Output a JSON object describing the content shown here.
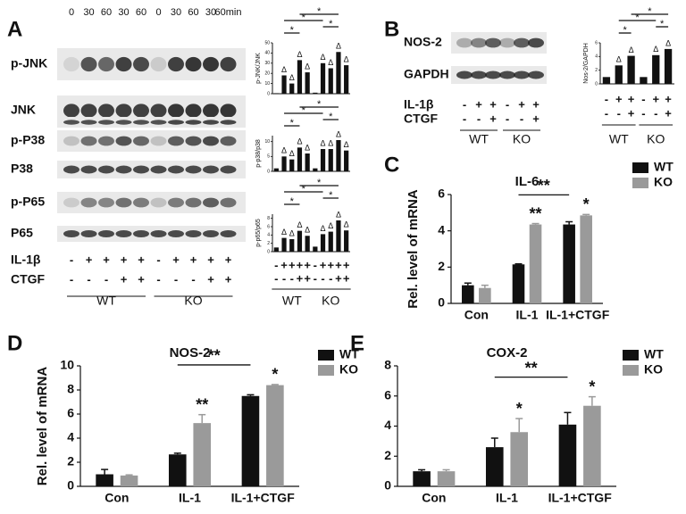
{
  "panel_labels": [
    "A",
    "B",
    "C",
    "D",
    "E"
  ],
  "groups": [
    "WT",
    "KO"
  ],
  "blot_a": {
    "times": [
      "0",
      "30",
      "60",
      "30",
      "60",
      "0",
      "30",
      "60",
      "30",
      "60min"
    ],
    "rows": [
      "p-JNK",
      "JNK",
      "p-P38",
      "P38",
      "p-P65",
      "P65"
    ],
    "treatments": [
      {
        "name": "IL-1β",
        "signs": [
          "-",
          "+",
          "+",
          "+",
          "+",
          "-",
          "+",
          "+",
          "+",
          "+"
        ]
      },
      {
        "name": "CTGF",
        "signs": [
          "-",
          "-",
          "-",
          "+",
          "+",
          "-",
          "-",
          "-",
          "+",
          "+"
        ]
      }
    ]
  },
  "blot_b": {
    "rows": [
      "NOS-2",
      "GAPDH"
    ],
    "treatments": [
      {
        "name": "IL-1β",
        "signs": [
          "-",
          "+",
          "+",
          "-",
          "+",
          "+"
        ]
      },
      {
        "name": "CTGF",
        "signs": [
          "-",
          "-",
          "+",
          "-",
          "-",
          "+"
        ]
      }
    ]
  },
  "chart_data": [
    {
      "type": "small-bar",
      "ylabel": "p-JNK/JNK",
      "color": "#111111",
      "values": [
        0.5,
        18,
        10,
        33,
        21,
        1,
        30,
        25,
        41,
        28
      ],
      "ylim": [
        0,
        50
      ],
      "yticks": [
        0,
        10,
        20,
        30,
        40,
        50
      ],
      "bar_marks": [
        null,
        "Δ",
        "Δ",
        "Δ",
        "Δ",
        null,
        "Δ",
        "Δ",
        "Δ",
        "Δ"
      ],
      "brackets": [
        {
          "label": "*",
          "span": [
            3,
            8
          ]
        },
        {
          "label": "*",
          "span": [
            1,
            6
          ]
        },
        {
          "label": "*",
          "span": [
            6,
            8
          ]
        },
        {
          "label": "*",
          "span": [
            1,
            3
          ]
        }
      ]
    },
    {
      "type": "small-bar",
      "ylabel": "p-p38/p38",
      "color": "#111111",
      "values": [
        1,
        5,
        4,
        8,
        6,
        1,
        7.5,
        7.5,
        10.5,
        7
      ],
      "ylim": [
        0,
        12
      ],
      "yticks": [
        0,
        5,
        10
      ],
      "bar_marks": [
        null,
        "Δ",
        "Δ",
        "Δ",
        "Δ",
        null,
        "Δ",
        "Δ",
        "Δ",
        "Δ"
      ],
      "brackets": [
        {
          "label": "*",
          "span": [
            3,
            8
          ]
        },
        {
          "label": "*",
          "span": [
            1,
            6
          ]
        },
        {
          "label": "*",
          "span": [
            6,
            8
          ]
        },
        {
          "label": "*",
          "span": [
            1,
            3
          ]
        }
      ]
    },
    {
      "type": "small-bar",
      "ylabel": "p-p65/p65",
      "color": "#111111",
      "values": [
        1,
        3.3,
        3,
        5,
        3.8,
        1.2,
        4.2,
        4.8,
        7.5,
        5.1
      ],
      "ylim": [
        0,
        9
      ],
      "yticks": [
        0,
        2,
        4,
        6,
        8
      ],
      "bar_marks": [
        null,
        "Δ",
        "Δ",
        "Δ",
        "Δ",
        null,
        "Δ",
        "Δ",
        "Δ",
        "Δ"
      ],
      "brackets": [
        {
          "label": "*",
          "span": [
            3,
            8
          ]
        },
        {
          "label": "*",
          "span": [
            1,
            6
          ]
        },
        {
          "label": "*",
          "span": [
            6,
            8
          ]
        },
        {
          "label": "*",
          "span": [
            1,
            3
          ]
        }
      ]
    },
    {
      "type": "small-bar",
      "ylabel": "Nos-2/GAPDH",
      "color": "#111111",
      "values": [
        1,
        2.7,
        4.1,
        1,
        4.2,
        5.1
      ],
      "ylim": [
        0,
        6
      ],
      "yticks": [
        0,
        2,
        4,
        6
      ],
      "bar_marks": [
        null,
        "Δ",
        "Δ",
        null,
        "Δ",
        "Δ"
      ],
      "brackets": [
        {
          "label": "*",
          "span": [
            2,
            5
          ]
        },
        {
          "label": "*",
          "span": [
            1,
            4
          ]
        },
        {
          "label": "*",
          "span": [
            4,
            5
          ]
        },
        {
          "label": "*",
          "span": [
            1,
            2
          ]
        }
      ]
    },
    {
      "type": "bar",
      "title": "IL-6",
      "ylabel": "Rel. level of mRNA",
      "categories": [
        "Con",
        "IL-1",
        "IL-1+CTGF"
      ],
      "legend": "right",
      "series": [
        {
          "name": "WT",
          "color": "#111111",
          "values": [
            1.0,
            2.15,
            4.35
          ],
          "errors": [
            0.12,
            0.03,
            0.15
          ]
        },
        {
          "name": "KO",
          "color": "#9a9a9a",
          "values": [
            0.85,
            4.35,
            4.85
          ],
          "errors": [
            0.15,
            0.05,
            0.05
          ]
        }
      ],
      "ylim": [
        0,
        6
      ],
      "yticks": [
        0,
        2,
        4,
        6
      ],
      "annotations": [
        {
          "text": "**",
          "series": 1,
          "index": 1
        },
        {
          "text": "*",
          "series": 1,
          "index": 2
        }
      ],
      "bracket": {
        "text": "**",
        "span": [
          1,
          2
        ]
      }
    },
    {
      "type": "bar",
      "title": "NOS-2",
      "ylabel": "Rel. level of mRNA",
      "categories": [
        "Con",
        "IL-1",
        "IL-1+CTGF"
      ],
      "legend": "right",
      "series": [
        {
          "name": "WT",
          "color": "#111111",
          "values": [
            1.0,
            2.65,
            7.5
          ],
          "errors": [
            0.4,
            0.1,
            0.1
          ]
        },
        {
          "name": "KO",
          "color": "#9a9a9a",
          "values": [
            0.9,
            5.25,
            8.4
          ],
          "errors": [
            0.05,
            0.7,
            0.05
          ]
        }
      ],
      "ylim": [
        0,
        10
      ],
      "yticks": [
        0,
        2,
        4,
        6,
        8,
        10
      ],
      "annotations": [
        {
          "text": "**",
          "series": 1,
          "index": 1
        },
        {
          "text": "*",
          "series": 1,
          "index": 2
        }
      ],
      "bracket": {
        "text": "**",
        "span": [
          1,
          2
        ]
      }
    },
    {
      "type": "bar",
      "title": "COX-2",
      "categories": [
        "Con",
        "IL-1",
        "IL-1+CTGF"
      ],
      "legend": "right",
      "series": [
        {
          "name": "WT",
          "color": "#111111",
          "values": [
            1.0,
            2.6,
            4.1
          ],
          "errors": [
            0.1,
            0.6,
            0.8
          ]
        },
        {
          "name": "KO",
          "color": "#9a9a9a",
          "values": [
            1.0,
            3.6,
            5.35
          ],
          "errors": [
            0.1,
            0.9,
            0.6
          ]
        }
      ],
      "ylim": [
        0,
        8
      ],
      "yticks": [
        0,
        2,
        4,
        6,
        8
      ],
      "annotations": [
        {
          "text": "*",
          "series": 1,
          "index": 1
        },
        {
          "text": "*",
          "series": 1,
          "index": 2
        }
      ],
      "bracket": {
        "text": "**",
        "span": [
          1,
          2
        ]
      }
    }
  ]
}
